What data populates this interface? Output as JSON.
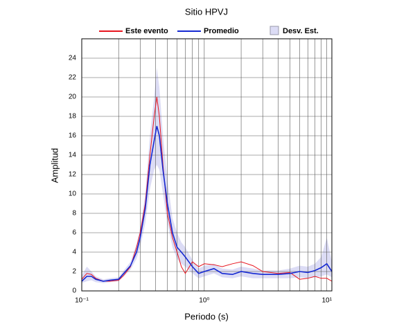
{
  "chart_data": {
    "type": "line",
    "title": "Sitio HPVJ",
    "x_label": "Periodo (s)",
    "y_label": "Amplitud",
    "x_scale": "log",
    "grid": true,
    "legend": "top",
    "xlim": [
      0.1,
      11
    ],
    "ylim": [
      0,
      26
    ],
    "xticks": [
      {
        "value": 0.1,
        "label": "10⁻¹"
      },
      {
        "value": 1,
        "label": "10⁰"
      },
      {
        "value": 10,
        "label": "10¹"
      }
    ],
    "yticks": [
      0,
      2,
      4,
      6,
      8,
      10,
      12,
      14,
      16,
      18,
      20,
      22,
      24
    ],
    "x": [
      0.1,
      0.11,
      0.12,
      0.13,
      0.15,
      0.17,
      0.2,
      0.22,
      0.25,
      0.28,
      0.3,
      0.33,
      0.36,
      0.39,
      0.41,
      0.43,
      0.46,
      0.5,
      0.55,
      0.6,
      0.65,
      0.7,
      0.8,
      0.9,
      1.0,
      1.2,
      1.4,
      1.7,
      2.0,
      2.5,
      3.0,
      4.0,
      5.0,
      6.0,
      7.0,
      8.0,
      9.0,
      10.0,
      11.0
    ],
    "series": [
      {
        "name": "Este evento",
        "color": "#e8141e",
        "values": [
          1.2,
          1.8,
          1.7,
          1.3,
          1.0,
          1.0,
          1.1,
          1.6,
          2.5,
          4.5,
          6,
          9,
          14,
          18,
          20,
          18,
          13,
          8,
          5.5,
          4,
          2.5,
          1.8,
          3,
          2.5,
          2.8,
          2.7,
          2.5,
          2.8,
          3,
          2.6,
          2,
          1.8,
          1.9,
          1.2,
          1.3,
          1.5,
          1.3,
          1.3,
          1.0
        ]
      },
      {
        "name": "Promedio",
        "color": "#1428d2",
        "values": [
          1.0,
          1.5,
          1.5,
          1.2,
          1.0,
          1.1,
          1.2,
          1.8,
          2.6,
          4.0,
          5.5,
          8.5,
          13,
          15.5,
          17,
          16,
          12.5,
          9,
          6,
          4.5,
          4,
          3.5,
          2.5,
          1.8,
          2.0,
          2.3,
          1.8,
          1.7,
          2.0,
          1.8,
          1.7,
          1.7,
          1.8,
          2.0,
          1.9,
          2.1,
          2.4,
          2.8,
          2.0
        ]
      },
      {
        "name": "Desv. Est.",
        "color": "#dcdcf5",
        "band": true,
        "lower": [
          0.8,
          1.0,
          1.1,
          0.9,
          0.8,
          0.9,
          1.0,
          1.5,
          2.2,
          3.3,
          4.5,
          7,
          10.5,
          12.5,
          13,
          12.5,
          10,
          7,
          4.5,
          3.3,
          2.8,
          2.5,
          1.8,
          1.3,
          1.5,
          1.8,
          1.4,
          1.3,
          1.5,
          1.3,
          1.3,
          1.3,
          1.3,
          1.4,
          1.3,
          1.4,
          1.5,
          1.7,
          1.4
        ],
        "upper": [
          1.6,
          2.5,
          2.0,
          1.5,
          1.2,
          1.3,
          1.4,
          2.1,
          3.0,
          4.8,
          6.5,
          10,
          16,
          20,
          23,
          21,
          16,
          11.5,
          7.5,
          6,
          5,
          4.5,
          3.2,
          2.3,
          2.6,
          2.8,
          2.3,
          2.2,
          2.5,
          2.3,
          2.1,
          2.1,
          2.3,
          2.6,
          2.5,
          2.8,
          3.5,
          5.5,
          3.0
        ]
      }
    ]
  }
}
